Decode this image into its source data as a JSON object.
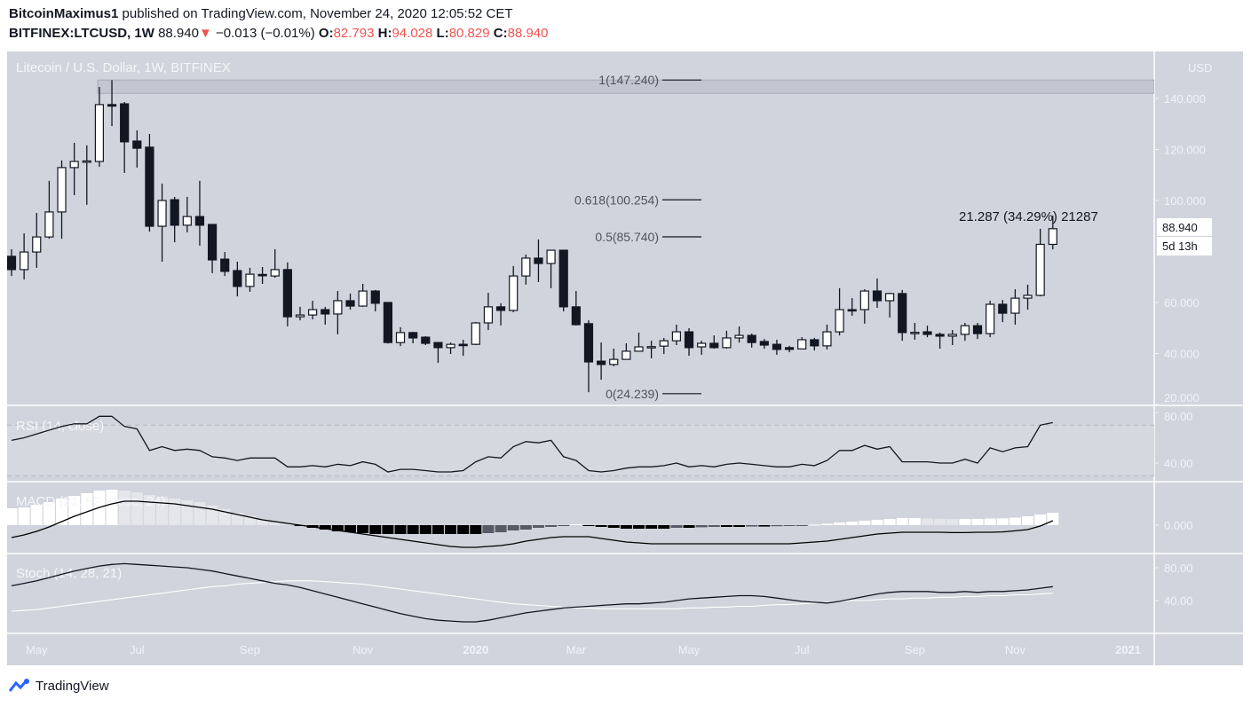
{
  "header": {
    "author": "BitcoinMaximus1",
    "published": "published on TradingView.com, November 24, 2020 12:05:52 CET",
    "symbol": "BITFINEX:LTCUSD, 1W",
    "last": "88.940",
    "change": "−0.013 (−0.01%)",
    "o_label": "O:",
    "o": "82.793",
    "h_label": "H:",
    "h": "94.028",
    "l_label": "L:",
    "l": "80.829",
    "c_label": "C:",
    "c": "88.940",
    "down_color": "#ef5350"
  },
  "footer": {
    "brand": "TradingView"
  },
  "chart_data": {
    "type": "candlestick",
    "title": "Litecoin / U.S. Dollar, 1W, BITFINEX",
    "currency": "USD",
    "ylim": [
      20,
      150
    ],
    "yticks": [
      "140.000",
      "120.000",
      "100.000",
      "60.000",
      "40.000",
      "20.000"
    ],
    "ytick_values": [
      140,
      120,
      100,
      60,
      40,
      20
    ],
    "last_price_label": "88.940",
    "countdown_label": "5d 13h",
    "colors": {
      "background": "#d1d4dc",
      "bearish": "#131722",
      "bullish": "#ffffff",
      "axis_text": "#f0f3fa"
    },
    "xticks": [
      {
        "label": "May",
        "date": "2019-05-06"
      },
      {
        "label": "Jul",
        "date": "2019-07-01"
      },
      {
        "label": "Sep",
        "date": "2019-09-02"
      },
      {
        "label": "Nov",
        "date": "2019-11-04"
      },
      {
        "label": "2020",
        "date": "2020-01-06"
      },
      {
        "label": "Mar",
        "date": "2020-03-02"
      },
      {
        "label": "May",
        "date": "2020-05-04"
      },
      {
        "label": "Jul",
        "date": "2020-07-06"
      },
      {
        "label": "Sep",
        "date": "2020-09-07"
      },
      {
        "label": "Nov",
        "date": "2020-11-02"
      },
      {
        "label": "2021",
        "date": "2021-01-04"
      }
    ],
    "dates": [
      "2019-04-22",
      "2019-04-29",
      "2019-05-06",
      "2019-05-13",
      "2019-05-20",
      "2019-05-27",
      "2019-06-03",
      "2019-06-10",
      "2019-06-17",
      "2019-06-24",
      "2019-07-01",
      "2019-07-08",
      "2019-07-15",
      "2019-07-22",
      "2019-07-29",
      "2019-08-05",
      "2019-08-12",
      "2019-08-19",
      "2019-08-26",
      "2019-09-02",
      "2019-09-09",
      "2019-09-16",
      "2019-09-23",
      "2019-09-30",
      "2019-10-07",
      "2019-10-14",
      "2019-10-21",
      "2019-10-28",
      "2019-11-04",
      "2019-11-11",
      "2019-11-18",
      "2019-11-25",
      "2019-12-02",
      "2019-12-09",
      "2019-12-16",
      "2019-12-23",
      "2019-12-30",
      "2020-01-06",
      "2020-01-13",
      "2020-01-20",
      "2020-01-27",
      "2020-02-03",
      "2020-02-10",
      "2020-02-17",
      "2020-02-24",
      "2020-03-02",
      "2020-03-09",
      "2020-03-16",
      "2020-03-23",
      "2020-03-30",
      "2020-04-06",
      "2020-04-13",
      "2020-04-20",
      "2020-04-27",
      "2020-05-04",
      "2020-05-11",
      "2020-05-18",
      "2020-05-25",
      "2020-06-01",
      "2020-06-08",
      "2020-06-15",
      "2020-06-22",
      "2020-06-29",
      "2020-07-06",
      "2020-07-13",
      "2020-07-20",
      "2020-07-27",
      "2020-08-03",
      "2020-08-10",
      "2020-08-17",
      "2020-08-24",
      "2020-08-31",
      "2020-09-07",
      "2020-09-14",
      "2020-09-21",
      "2020-09-28",
      "2020-10-05",
      "2020-10-12",
      "2020-10-19",
      "2020-10-26",
      "2020-11-02",
      "2020-11-09",
      "2020-11-16",
      "2020-11-23"
    ],
    "ohlc": [
      [
        78.1,
        80.9,
        70.4,
        72.9
      ],
      [
        72.9,
        87.1,
        69.0,
        79.8
      ],
      [
        79.8,
        95.1,
        73.6,
        85.7
      ],
      [
        85.7,
        107.7,
        85.0,
        95.5
      ],
      [
        95.5,
        115.7,
        85.0,
        112.9
      ],
      [
        112.9,
        122.6,
        102.1,
        115.3
      ],
      [
        115.0,
        121.6,
        98.3,
        115.5
      ],
      [
        115.3,
        144.5,
        113.2,
        137.6
      ],
      [
        137.6,
        147.2,
        129.2,
        137.0
      ],
      [
        137.9,
        138.6,
        110.8,
        123.0
      ],
      [
        123.3,
        127.5,
        112.9,
        120.5
      ],
      [
        120.9,
        126.1,
        87.8,
        89.9
      ],
      [
        89.9,
        106.6,
        76.0,
        100.0
      ],
      [
        100.3,
        101.4,
        83.6,
        90.3
      ],
      [
        90.3,
        101.4,
        87.5,
        93.7
      ],
      [
        93.7,
        107.7,
        82.3,
        90.3
      ],
      [
        90.6,
        90.6,
        71.5,
        76.7
      ],
      [
        77.0,
        79.8,
        70.4,
        72.2
      ],
      [
        72.5,
        76.0,
        62.4,
        66.3
      ],
      [
        66.3,
        73.6,
        64.2,
        71.1
      ],
      [
        71.0,
        73.9,
        67.3,
        70.8
      ],
      [
        70.4,
        80.9,
        69.7,
        72.9
      ],
      [
        72.9,
        75.7,
        50.6,
        54.4
      ],
      [
        54.4,
        58.3,
        53.0,
        55.1
      ],
      [
        55.1,
        60.7,
        53.4,
        57.2
      ],
      [
        57.2,
        58.3,
        51.3,
        55.5
      ],
      [
        55.5,
        64.5,
        47.5,
        60.7
      ],
      [
        60.7,
        63.5,
        57.2,
        58.6
      ],
      [
        58.6,
        67.3,
        58.3,
        64.5
      ],
      [
        64.5,
        64.9,
        56.5,
        59.7
      ],
      [
        60.0,
        60.0,
        43.9,
        44.3
      ],
      [
        44.3,
        50.3,
        42.9,
        48.2
      ],
      [
        48.2,
        48.5,
        44.0,
        46.1
      ],
      [
        46.4,
        46.8,
        43.3,
        44.0
      ],
      [
        44.3,
        44.3,
        36.3,
        42.3
      ],
      [
        42.3,
        44.3,
        39.8,
        43.6
      ],
      [
        43.6,
        45.4,
        39.1,
        43.2
      ],
      [
        43.6,
        52.3,
        43.3,
        52.0
      ],
      [
        52.0,
        63.8,
        49.2,
        58.3
      ],
      [
        58.3,
        59.7,
        51.0,
        56.9
      ],
      [
        56.9,
        74.3,
        56.2,
        70.4
      ],
      [
        70.4,
        78.8,
        67.0,
        77.4
      ],
      [
        77.4,
        84.7,
        68.0,
        75.3
      ],
      [
        75.3,
        80.5,
        65.6,
        80.5
      ],
      [
        80.5,
        80.5,
        56.5,
        58.3
      ],
      [
        58.3,
        64.5,
        51.0,
        51.3
      ],
      [
        51.7,
        53.0,
        24.8,
        36.7
      ],
      [
        37.0,
        44.3,
        29.7,
        35.7
      ],
      [
        35.7,
        41.9,
        35.0,
        37.7
      ],
      [
        37.7,
        44.0,
        37.7,
        40.9
      ],
      [
        40.9,
        48.2,
        40.9,
        42.6
      ],
      [
        42.6,
        45.0,
        38.1,
        42.7
      ],
      [
        42.9,
        46.1,
        39.8,
        45.0
      ],
      [
        45.0,
        51.3,
        43.3,
        48.5
      ],
      [
        48.5,
        49.9,
        39.1,
        42.3
      ],
      [
        42.6,
        45.0,
        39.5,
        44.0
      ],
      [
        44.0,
        47.1,
        41.9,
        42.3
      ],
      [
        42.3,
        48.9,
        41.9,
        46.1
      ],
      [
        46.1,
        50.6,
        44.3,
        47.1
      ],
      [
        47.1,
        47.8,
        42.3,
        44.3
      ],
      [
        44.7,
        45.7,
        41.9,
        43.3
      ],
      [
        43.6,
        45.4,
        39.5,
        41.6
      ],
      [
        42.3,
        43.0,
        40.5,
        41.6
      ],
      [
        41.8,
        46.4,
        41.6,
        45.4
      ],
      [
        45.4,
        46.1,
        41.2,
        43.0
      ],
      [
        43.0,
        51.3,
        41.6,
        48.5
      ],
      [
        48.5,
        65.6,
        47.1,
        57.2
      ],
      [
        57.2,
        61.7,
        54.8,
        56.9
      ],
      [
        57.2,
        65.2,
        51.7,
        64.5
      ],
      [
        64.5,
        69.4,
        57.9,
        60.7
      ],
      [
        60.7,
        63.8,
        54.1,
        63.5
      ],
      [
        63.5,
        64.9,
        45.0,
        48.2
      ],
      [
        48.2,
        52.0,
        45.4,
        48.3
      ],
      [
        48.5,
        50.9,
        46.4,
        47.5
      ],
      [
        47.5,
        48.2,
        41.9,
        46.8
      ],
      [
        46.8,
        49.2,
        43.3,
        47.5
      ],
      [
        47.5,
        52.0,
        45.0,
        50.9
      ],
      [
        50.9,
        52.0,
        45.7,
        47.8
      ],
      [
        47.8,
        60.7,
        46.4,
        59.3
      ],
      [
        59.3,
        61.0,
        52.3,
        55.8
      ],
      [
        55.8,
        65.2,
        51.3,
        61.7
      ],
      [
        61.7,
        67.0,
        57.2,
        62.8
      ],
      [
        62.8,
        88.9,
        62.4,
        82.8
      ],
      [
        82.793,
        94.028,
        80.829,
        88.94
      ]
    ],
    "fib_levels": [
      {
        "label": "1(147.240)",
        "value": 147.24
      },
      {
        "label": "0.618(100.254)",
        "value": 100.254
      },
      {
        "label": "0.5(85.740)",
        "value": 85.74
      },
      {
        "label": "0(24.239)",
        "value": 24.239
      }
    ],
    "resistance_zone": [
      142.0,
      147.24
    ],
    "measure_annotation": "21.287 (34.29%) 21287",
    "rsi": {
      "title": "RSI (14, close)",
      "yticks": [
        "80.00",
        "40.00"
      ],
      "ytick_values": [
        80,
        40
      ],
      "bands": [
        70,
        30
      ],
      "values": [
        58,
        60,
        63,
        66,
        69,
        71,
        71,
        77,
        77,
        69,
        67,
        50,
        53,
        50,
        51,
        50,
        45,
        44,
        42,
        44,
        44,
        44,
        37,
        37,
        38,
        37,
        39,
        38,
        41,
        39,
        33,
        35,
        35,
        34,
        33,
        33,
        34,
        41,
        45,
        44,
        53,
        57,
        56,
        58,
        45,
        42,
        34,
        33,
        34,
        36,
        37,
        37,
        38,
        40,
        37,
        38,
        37,
        39,
        40,
        39,
        38,
        37,
        37,
        39,
        38,
        42,
        50,
        50,
        54,
        51,
        53,
        41,
        41,
        41,
        40,
        40,
        43,
        40,
        52,
        49,
        52,
        53,
        70,
        72
      ]
    },
    "macd": {
      "title": "MACD (21, 52, close, 24)",
      "yticks": [
        "0.000"
      ],
      "ytick_values": [
        0
      ],
      "macd": [
        -7,
        -5.5,
        -3.5,
        -1,
        2,
        5,
        7.5,
        10,
        12,
        13.5,
        13.5,
        13,
        12.5,
        12,
        11,
        10,
        9,
        7.5,
        6,
        4.5,
        3,
        2,
        1,
        0,
        -1,
        -2,
        -3,
        -4,
        -5,
        -6,
        -7,
        -8,
        -9,
        -10,
        -11,
        -12,
        -12.5,
        -12.5,
        -12,
        -11.5,
        -10.5,
        -9,
        -8,
        -7,
        -6.5,
        -6.5,
        -6.5,
        -7.5,
        -8.5,
        -9.5,
        -10,
        -10.5,
        -10.5,
        -10.5,
        -10.5,
        -10.5,
        -10.5,
        -10.5,
        -10.5,
        -10.5,
        -10.5,
        -10.5,
        -10.5,
        -10,
        -9.5,
        -9,
        -8,
        -7,
        -6,
        -5,
        -4.5,
        -4,
        -4,
        -4,
        -4,
        -4.2,
        -4.2,
        -4,
        -4,
        -3.8,
        -3.2,
        -2.5,
        -0.5,
        2.5
      ],
      "histogram": [
        9.5,
        10,
        11.5,
        13,
        15,
        16.5,
        18,
        19.5,
        20,
        19.5,
        18.5,
        17,
        16,
        15,
        14,
        13,
        11,
        9,
        7,
        5,
        3,
        1.5,
        0.5,
        -0.5,
        -1.5,
        -2.5,
        -3.5,
        -4,
        -4.5,
        -5,
        -5,
        -5,
        -5,
        -5,
        -5,
        -5,
        -5,
        -5,
        -4.5,
        -4,
        -3,
        -2.5,
        -1.5,
        -1,
        -0.5,
        0.5,
        -0.5,
        -1,
        -1.5,
        -2,
        -2,
        -2,
        -2,
        -1.5,
        -1.5,
        -1.2,
        -1,
        -1,
        -1,
        -0.8,
        -0.8,
        -0.6,
        -0.5,
        -0.3,
        0.3,
        0.8,
        1.5,
        2,
        2.5,
        3,
        3.5,
        4,
        4,
        3.8,
        3.6,
        3.5,
        3.5,
        3.5,
        3.7,
        3.8,
        4.2,
        5,
        6,
        7
      ],
      "colors": {
        "pos_rising": "#ffffff",
        "pos_falling": "#e4e6ec",
        "neg_falling": "#000000",
        "neg_rising": "#585b66"
      }
    },
    "stoch": {
      "title": "Stoch (14, 28, 21)",
      "yticks": [
        "80.00",
        "40.00"
      ],
      "ytick_values": [
        80,
        40
      ],
      "k": [
        58,
        61,
        64,
        68,
        72,
        76,
        79,
        82,
        84,
        85,
        84,
        83,
        82,
        81,
        80,
        78,
        76,
        73,
        70,
        67,
        64,
        61,
        59,
        56,
        52,
        48,
        44,
        40,
        36,
        32,
        28,
        24,
        21,
        18,
        16,
        15,
        14,
        14,
        16,
        19,
        22,
        25,
        27,
        29,
        31,
        32,
        33,
        34,
        35,
        36,
        36,
        37,
        38,
        40,
        42,
        43,
        44,
        45,
        46,
        46,
        45,
        43,
        41,
        39,
        38,
        37,
        39,
        42,
        45,
        48,
        50,
        51,
        51,
        51,
        50,
        50,
        51,
        50,
        51,
        51,
        52,
        53,
        55,
        57
      ],
      "d": [
        27,
        28,
        29,
        31,
        33,
        35,
        37,
        39,
        41,
        43,
        45,
        47,
        49,
        51,
        53,
        55,
        57,
        58,
        60,
        61,
        62,
        63,
        64,
        64,
        64,
        63,
        62,
        61,
        60,
        58,
        56,
        54,
        52,
        50,
        48,
        46,
        44,
        42,
        40,
        38,
        36,
        35,
        34,
        33,
        32,
        31,
        31,
        30,
        30,
        30,
        30,
        30,
        30,
        30,
        31,
        31,
        32,
        32,
        33,
        33,
        34,
        35,
        35,
        36,
        37,
        38,
        39,
        40,
        40,
        41,
        42,
        42,
        43,
        43,
        44,
        44,
        45,
        45,
        46,
        46,
        47,
        47,
        48,
        49
      ]
    }
  }
}
